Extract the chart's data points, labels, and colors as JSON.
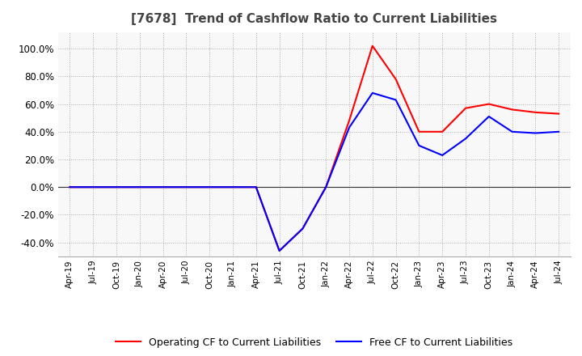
{
  "title": "[7678]  Trend of Cashflow Ratio to Current Liabilities",
  "title_fontsize": 11,
  "title_color": "#444444",
  "background_color": "#ffffff",
  "plot_background": "#f8f8f8",
  "grid_color": "#aaaaaa",
  "x_labels": [
    "Apr-19",
    "Jul-19",
    "Oct-19",
    "Jan-20",
    "Apr-20",
    "Jul-20",
    "Oct-20",
    "Jan-21",
    "Apr-21",
    "Jul-21",
    "Oct-21",
    "Jan-22",
    "Apr-22",
    "Jul-22",
    "Oct-22",
    "Jan-23",
    "Apr-23",
    "Jul-23",
    "Oct-23",
    "Jan-24",
    "Apr-24",
    "Jul-24"
  ],
  "operating_cf": [
    0.0,
    0.0,
    0.0,
    0.0,
    0.0,
    0.0,
    0.0,
    0.0,
    0.0,
    -46.0,
    -30.0,
    0.0,
    48.0,
    102.0,
    78.0,
    40.0,
    40.0,
    57.0,
    60.0,
    56.0,
    54.0,
    53.0
  ],
  "free_cf": [
    0.0,
    0.0,
    0.0,
    0.0,
    0.0,
    0.0,
    0.0,
    0.0,
    0.0,
    -46.0,
    -30.0,
    0.0,
    43.0,
    68.0,
    63.0,
    30.0,
    23.0,
    35.0,
    51.0,
    40.0,
    39.0,
    40.0
  ],
  "operating_color": "#ff0000",
  "free_color": "#0000ff",
  "ylim": [
    -50,
    112
  ],
  "yticks": [
    -40.0,
    -20.0,
    0.0,
    20.0,
    40.0,
    60.0,
    80.0,
    100.0
  ],
  "legend_labels": [
    "Operating CF to Current Liabilities",
    "Free CF to Current Liabilities"
  ],
  "linewidth": 1.5
}
